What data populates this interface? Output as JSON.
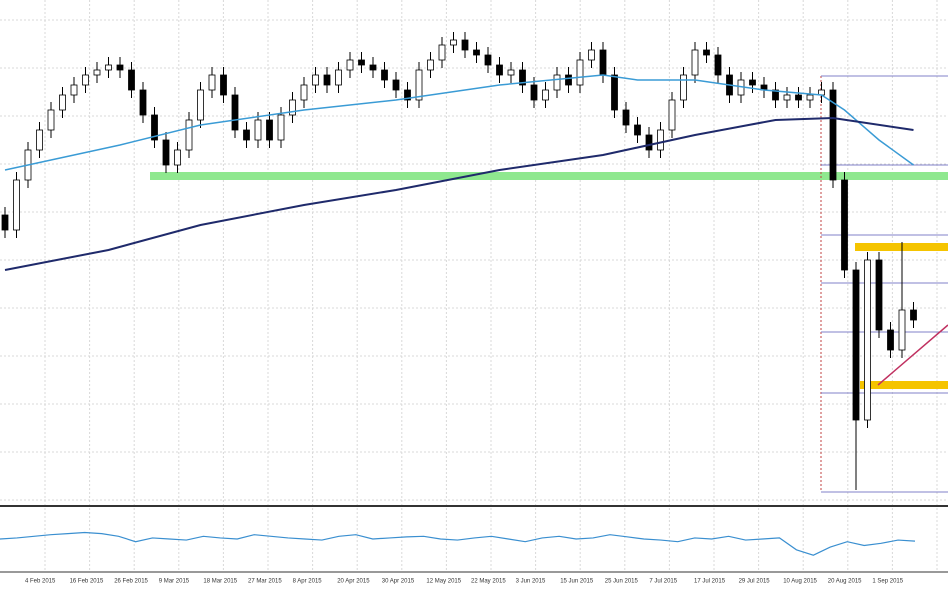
{
  "chart_data": {
    "type": "candlestick",
    "grid": true,
    "ylim": [
      0,
      500
    ],
    "up_color": "#ffffff",
    "down_color": "#000000",
    "candles": [
      [
        290,
        298,
        267,
        275
      ],
      [
        275,
        333,
        267,
        325
      ],
      [
        325,
        363,
        317,
        355
      ],
      [
        355,
        383,
        347,
        375
      ],
      [
        375,
        403,
        367,
        395
      ],
      [
        395,
        418,
        387,
        410
      ],
      [
        410,
        428,
        402,
        420
      ],
      [
        420,
        438,
        412,
        430
      ],
      [
        430,
        443,
        422,
        435
      ],
      [
        435,
        448,
        427,
        440
      ],
      [
        440,
        448,
        427,
        435
      ],
      [
        435,
        443,
        407,
        415
      ],
      [
        415,
        423,
        382,
        390
      ],
      [
        390,
        398,
        357,
        365
      ],
      [
        365,
        373,
        332,
        340
      ],
      [
        340,
        363,
        332,
        355
      ],
      [
        355,
        393,
        347,
        385
      ],
      [
        385,
        423,
        377,
        415
      ],
      [
        415,
        438,
        407,
        430
      ],
      [
        430,
        438,
        402,
        410
      ],
      [
        410,
        418,
        367,
        375
      ],
      [
        375,
        383,
        357,
        365
      ],
      [
        365,
        393,
        357,
        385
      ],
      [
        385,
        393,
        357,
        365
      ],
      [
        365,
        398,
        357,
        390
      ],
      [
        390,
        413,
        382,
        405
      ],
      [
        405,
        428,
        397,
        420
      ],
      [
        420,
        438,
        412,
        430
      ],
      [
        430,
        438,
        412,
        420
      ],
      [
        420,
        443,
        412,
        435
      ],
      [
        435,
        453,
        427,
        445
      ],
      [
        445,
        453,
        432,
        440
      ],
      [
        440,
        448,
        427,
        435
      ],
      [
        435,
        443,
        417,
        425
      ],
      [
        425,
        433,
        407,
        415
      ],
      [
        415,
        423,
        397,
        405
      ],
      [
        405,
        443,
        397,
        435
      ],
      [
        435,
        453,
        427,
        445
      ],
      [
        445,
        468,
        437,
        460
      ],
      [
        460,
        473,
        452,
        465
      ],
      [
        465,
        473,
        447,
        455
      ],
      [
        455,
        463,
        442,
        450
      ],
      [
        450,
        458,
        432,
        440
      ],
      [
        440,
        448,
        422,
        430
      ],
      [
        430,
        443,
        422,
        435
      ],
      [
        435,
        443,
        412,
        420
      ],
      [
        420,
        428,
        397,
        405
      ],
      [
        405,
        423,
        397,
        415
      ],
      [
        415,
        438,
        407,
        430
      ],
      [
        430,
        438,
        412,
        420
      ],
      [
        420,
        453,
        412,
        445
      ],
      [
        445,
        463,
        437,
        455
      ],
      [
        455,
        463,
        422,
        430
      ],
      [
        430,
        438,
        387,
        395
      ],
      [
        395,
        403,
        372,
        380
      ],
      [
        380,
        388,
        362,
        370
      ],
      [
        370,
        378,
        347,
        355
      ],
      [
        355,
        383,
        347,
        375
      ],
      [
        375,
        413,
        367,
        405
      ],
      [
        405,
        438,
        397,
        430
      ],
      [
        430,
        463,
        422,
        455
      ],
      [
        455,
        463,
        442,
        450
      ],
      [
        450,
        458,
        422,
        430
      ],
      [
        430,
        438,
        402,
        410
      ],
      [
        410,
        433,
        402,
        425
      ],
      [
        425,
        433,
        412,
        420
      ],
      [
        420,
        428,
        407,
        415
      ],
      [
        415,
        423,
        397,
        405
      ],
      [
        405,
        418,
        397,
        410
      ],
      [
        410,
        418,
        397,
        405
      ],
      [
        405,
        418,
        397,
        410
      ],
      [
        410,
        423,
        402,
        415
      ],
      [
        415,
        423,
        317,
        325
      ],
      [
        325,
        333,
        227,
        235
      ],
      [
        235,
        243,
        15,
        85
      ],
      [
        85,
        253,
        77,
        245
      ],
      [
        245,
        253,
        167,
        175
      ],
      [
        175,
        183,
        147,
        155
      ],
      [
        155,
        263,
        147,
        195
      ],
      [
        195,
        203,
        177,
        185
      ]
    ],
    "moving_averages": [
      {
        "color": "#3a9bd5",
        "x": [
          0,
          10,
          17,
          26,
          34,
          43,
          52,
          55,
          60,
          66,
          71,
          73,
          76,
          79
        ],
        "values": [
          335,
          360,
          380,
          395,
          405,
          420,
          430,
          425,
          425,
          415,
          410,
          395,
          365,
          340
        ]
      },
      {
        "color": "#1f2a6b",
        "x": [
          0,
          9,
          17,
          26,
          34,
          43,
          52,
          60,
          67,
          72,
          79
        ],
        "values": [
          235,
          255,
          280,
          300,
          315,
          335,
          350,
          370,
          385,
          387,
          375
        ]
      }
    ],
    "support": {
      "color": "#8fe88f",
      "value": 329
    },
    "fib_color": "#8080c8",
    "fib_levels": [
      429,
      340,
      270,
      222,
      173,
      112,
      13
    ],
    "zones": {
      "color": "#f5c400",
      "values": [
        258,
        120
      ]
    },
    "oscillator": {
      "color": "#3a8fd0",
      "ylim": [
        0,
        100
      ],
      "values": [
        50,
        52,
        55,
        58,
        60,
        62,
        60,
        55,
        45,
        52,
        50,
        48,
        55,
        52,
        50,
        58,
        55,
        52,
        50,
        48,
        55,
        58,
        50,
        52,
        54,
        55,
        50,
        48,
        52,
        55,
        50,
        45,
        52,
        55,
        50,
        52,
        58,
        54,
        50,
        48,
        45,
        52,
        50,
        55,
        48,
        50,
        52,
        30,
        20,
        35,
        45,
        38,
        42,
        48,
        46
      ]
    },
    "xticks": [
      "4 Feb 2015",
      "16 Feb 2015",
      "26 Feb 2015",
      "9 Mar 2015",
      "18 Mar 2015",
      "27 Mar 2015",
      "8 Apr 2015",
      "20 Apr 2015",
      "30 Apr 2015",
      "12 May 2015",
      "22 May 2015",
      "3 Jun 2015",
      "15 Jun 2015",
      "25 Jun 2015",
      "7 Jul 2015",
      "17 Jul 2015",
      "29 Jul 2015",
      "10 Aug 2015",
      "20 Aug 2015",
      "1 Sep 2015"
    ]
  }
}
